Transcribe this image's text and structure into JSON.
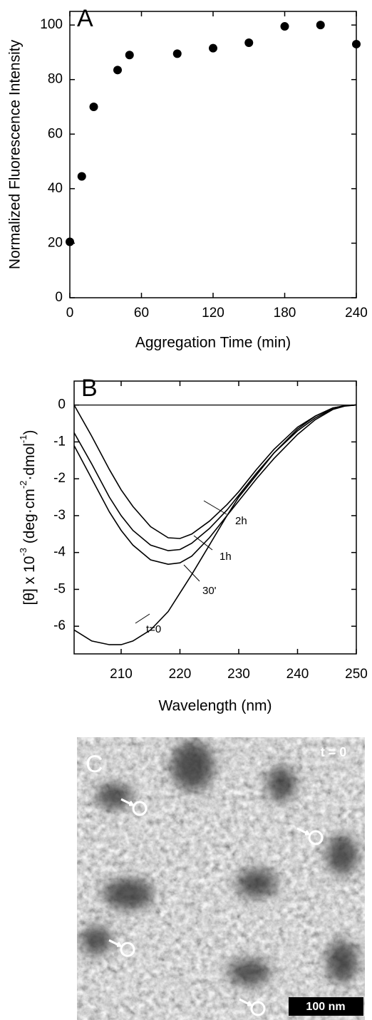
{
  "chart_data": [
    {
      "type": "scatter",
      "panel": "A",
      "xlabel": "Aggregation Time (min)",
      "ylabel": "Normalized Fluorescence Intensity",
      "x": [
        0,
        10,
        20,
        40,
        50,
        90,
        120,
        150,
        180,
        210,
        240
      ],
      "values": [
        20.5,
        44.5,
        70,
        83.5,
        89,
        89.5,
        91.5,
        93.5,
        99.5,
        100,
        93
      ],
      "color": "#000000",
      "xlim": [
        0,
        240
      ],
      "ylim": [
        0,
        105
      ],
      "xticks": [
        0,
        60,
        120,
        180,
        240
      ],
      "yticks": [
        0,
        20,
        40,
        60,
        80,
        100
      ]
    },
    {
      "type": "line",
      "panel": "B",
      "xlabel": "Wavelength (nm)",
      "ylabel": [
        "[θ] x 10",
        "-3",
        " (deg·cm",
        "-2",
        "·dmol",
        "-1",
        ")"
      ],
      "x": [
        202,
        205,
        208,
        210,
        212,
        215,
        218,
        220,
        222,
        225,
        228,
        230,
        233,
        236,
        240,
        243,
        246,
        248,
        250
      ],
      "series": [
        {
          "name": "t=0",
          "color": "#000000",
          "values": [
            -6.1,
            -6.4,
            -6.5,
            -6.5,
            -6.4,
            -6.1,
            -5.6,
            -5.1,
            -4.6,
            -3.8,
            -3.0,
            -2.5,
            -1.9,
            -1.3,
            -0.65,
            -0.3,
            -0.08,
            -0.02,
            0
          ]
        },
        {
          "name": "30'",
          "color": "#000000",
          "values": [
            -1.1,
            -2.0,
            -2.9,
            -3.4,
            -3.8,
            -4.2,
            -4.32,
            -4.28,
            -4.1,
            -3.6,
            -3.0,
            -2.6,
            -2.0,
            -1.45,
            -0.8,
            -0.4,
            -0.12,
            -0.03,
            0
          ]
        },
        {
          "name": "1h",
          "color": "#000000",
          "values": [
            -0.75,
            -1.6,
            -2.5,
            -3.0,
            -3.4,
            -3.8,
            -3.95,
            -3.92,
            -3.75,
            -3.35,
            -2.85,
            -2.45,
            -1.85,
            -1.3,
            -0.7,
            -0.35,
            -0.1,
            -0.02,
            0
          ]
        },
        {
          "name": "2h",
          "color": "#000000",
          "values": [
            0,
            -0.85,
            -1.75,
            -2.3,
            -2.75,
            -3.3,
            -3.6,
            -3.62,
            -3.5,
            -3.15,
            -2.7,
            -2.35,
            -1.75,
            -1.2,
            -0.6,
            -0.3,
            -0.08,
            -0.02,
            0
          ]
        }
      ],
      "xlim": [
        202,
        250
      ],
      "ylim": [
        -6.75,
        0.65
      ],
      "xticks": [
        210,
        220,
        230,
        240,
        250
      ],
      "yticks": [
        0,
        -1,
        -2,
        -3,
        -4,
        -5,
        -6
      ],
      "zero_line": true
    }
  ],
  "image": {
    "panel": "C",
    "label": "t = 0",
    "scale_bar": "100 nm"
  }
}
